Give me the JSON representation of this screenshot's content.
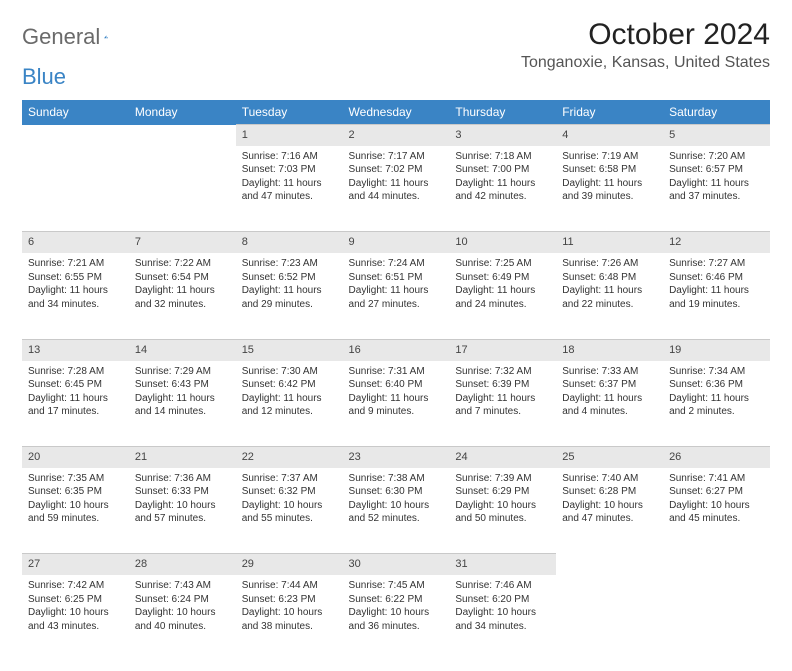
{
  "logo": {
    "word1": "General",
    "word2": "Blue"
  },
  "title": "October 2024",
  "location": "Tonganoxie, Kansas, United States",
  "header_bg": "#3a84c5",
  "daynum_bg": "#e8e8e8",
  "text_color": "#333333",
  "day_headers": [
    "Sunday",
    "Monday",
    "Tuesday",
    "Wednesday",
    "Thursday",
    "Friday",
    "Saturday"
  ],
  "weeks": [
    [
      null,
      null,
      {
        "n": "1",
        "sr": "Sunrise: 7:16 AM",
        "ss": "Sunset: 7:03 PM",
        "d1": "Daylight: 11 hours",
        "d2": "and 47 minutes."
      },
      {
        "n": "2",
        "sr": "Sunrise: 7:17 AM",
        "ss": "Sunset: 7:02 PM",
        "d1": "Daylight: 11 hours",
        "d2": "and 44 minutes."
      },
      {
        "n": "3",
        "sr": "Sunrise: 7:18 AM",
        "ss": "Sunset: 7:00 PM",
        "d1": "Daylight: 11 hours",
        "d2": "and 42 minutes."
      },
      {
        "n": "4",
        "sr": "Sunrise: 7:19 AM",
        "ss": "Sunset: 6:58 PM",
        "d1": "Daylight: 11 hours",
        "d2": "and 39 minutes."
      },
      {
        "n": "5",
        "sr": "Sunrise: 7:20 AM",
        "ss": "Sunset: 6:57 PM",
        "d1": "Daylight: 11 hours",
        "d2": "and 37 minutes."
      }
    ],
    [
      {
        "n": "6",
        "sr": "Sunrise: 7:21 AM",
        "ss": "Sunset: 6:55 PM",
        "d1": "Daylight: 11 hours",
        "d2": "and 34 minutes."
      },
      {
        "n": "7",
        "sr": "Sunrise: 7:22 AM",
        "ss": "Sunset: 6:54 PM",
        "d1": "Daylight: 11 hours",
        "d2": "and 32 minutes."
      },
      {
        "n": "8",
        "sr": "Sunrise: 7:23 AM",
        "ss": "Sunset: 6:52 PM",
        "d1": "Daylight: 11 hours",
        "d2": "and 29 minutes."
      },
      {
        "n": "9",
        "sr": "Sunrise: 7:24 AM",
        "ss": "Sunset: 6:51 PM",
        "d1": "Daylight: 11 hours",
        "d2": "and 27 minutes."
      },
      {
        "n": "10",
        "sr": "Sunrise: 7:25 AM",
        "ss": "Sunset: 6:49 PM",
        "d1": "Daylight: 11 hours",
        "d2": "and 24 minutes."
      },
      {
        "n": "11",
        "sr": "Sunrise: 7:26 AM",
        "ss": "Sunset: 6:48 PM",
        "d1": "Daylight: 11 hours",
        "d2": "and 22 minutes."
      },
      {
        "n": "12",
        "sr": "Sunrise: 7:27 AM",
        "ss": "Sunset: 6:46 PM",
        "d1": "Daylight: 11 hours",
        "d2": "and 19 minutes."
      }
    ],
    [
      {
        "n": "13",
        "sr": "Sunrise: 7:28 AM",
        "ss": "Sunset: 6:45 PM",
        "d1": "Daylight: 11 hours",
        "d2": "and 17 minutes."
      },
      {
        "n": "14",
        "sr": "Sunrise: 7:29 AM",
        "ss": "Sunset: 6:43 PM",
        "d1": "Daylight: 11 hours",
        "d2": "and 14 minutes."
      },
      {
        "n": "15",
        "sr": "Sunrise: 7:30 AM",
        "ss": "Sunset: 6:42 PM",
        "d1": "Daylight: 11 hours",
        "d2": "and 12 minutes."
      },
      {
        "n": "16",
        "sr": "Sunrise: 7:31 AM",
        "ss": "Sunset: 6:40 PM",
        "d1": "Daylight: 11 hours",
        "d2": "and 9 minutes."
      },
      {
        "n": "17",
        "sr": "Sunrise: 7:32 AM",
        "ss": "Sunset: 6:39 PM",
        "d1": "Daylight: 11 hours",
        "d2": "and 7 minutes."
      },
      {
        "n": "18",
        "sr": "Sunrise: 7:33 AM",
        "ss": "Sunset: 6:37 PM",
        "d1": "Daylight: 11 hours",
        "d2": "and 4 minutes."
      },
      {
        "n": "19",
        "sr": "Sunrise: 7:34 AM",
        "ss": "Sunset: 6:36 PM",
        "d1": "Daylight: 11 hours",
        "d2": "and 2 minutes."
      }
    ],
    [
      {
        "n": "20",
        "sr": "Sunrise: 7:35 AM",
        "ss": "Sunset: 6:35 PM",
        "d1": "Daylight: 10 hours",
        "d2": "and 59 minutes."
      },
      {
        "n": "21",
        "sr": "Sunrise: 7:36 AM",
        "ss": "Sunset: 6:33 PM",
        "d1": "Daylight: 10 hours",
        "d2": "and 57 minutes."
      },
      {
        "n": "22",
        "sr": "Sunrise: 7:37 AM",
        "ss": "Sunset: 6:32 PM",
        "d1": "Daylight: 10 hours",
        "d2": "and 55 minutes."
      },
      {
        "n": "23",
        "sr": "Sunrise: 7:38 AM",
        "ss": "Sunset: 6:30 PM",
        "d1": "Daylight: 10 hours",
        "d2": "and 52 minutes."
      },
      {
        "n": "24",
        "sr": "Sunrise: 7:39 AM",
        "ss": "Sunset: 6:29 PM",
        "d1": "Daylight: 10 hours",
        "d2": "and 50 minutes."
      },
      {
        "n": "25",
        "sr": "Sunrise: 7:40 AM",
        "ss": "Sunset: 6:28 PM",
        "d1": "Daylight: 10 hours",
        "d2": "and 47 minutes."
      },
      {
        "n": "26",
        "sr": "Sunrise: 7:41 AM",
        "ss": "Sunset: 6:27 PM",
        "d1": "Daylight: 10 hours",
        "d2": "and 45 minutes."
      }
    ],
    [
      {
        "n": "27",
        "sr": "Sunrise: 7:42 AM",
        "ss": "Sunset: 6:25 PM",
        "d1": "Daylight: 10 hours",
        "d2": "and 43 minutes."
      },
      {
        "n": "28",
        "sr": "Sunrise: 7:43 AM",
        "ss": "Sunset: 6:24 PM",
        "d1": "Daylight: 10 hours",
        "d2": "and 40 minutes."
      },
      {
        "n": "29",
        "sr": "Sunrise: 7:44 AM",
        "ss": "Sunset: 6:23 PM",
        "d1": "Daylight: 10 hours",
        "d2": "and 38 minutes."
      },
      {
        "n": "30",
        "sr": "Sunrise: 7:45 AM",
        "ss": "Sunset: 6:22 PM",
        "d1": "Daylight: 10 hours",
        "d2": "and 36 minutes."
      },
      {
        "n": "31",
        "sr": "Sunrise: 7:46 AM",
        "ss": "Sunset: 6:20 PM",
        "d1": "Daylight: 10 hours",
        "d2": "and 34 minutes."
      },
      null,
      null
    ]
  ]
}
